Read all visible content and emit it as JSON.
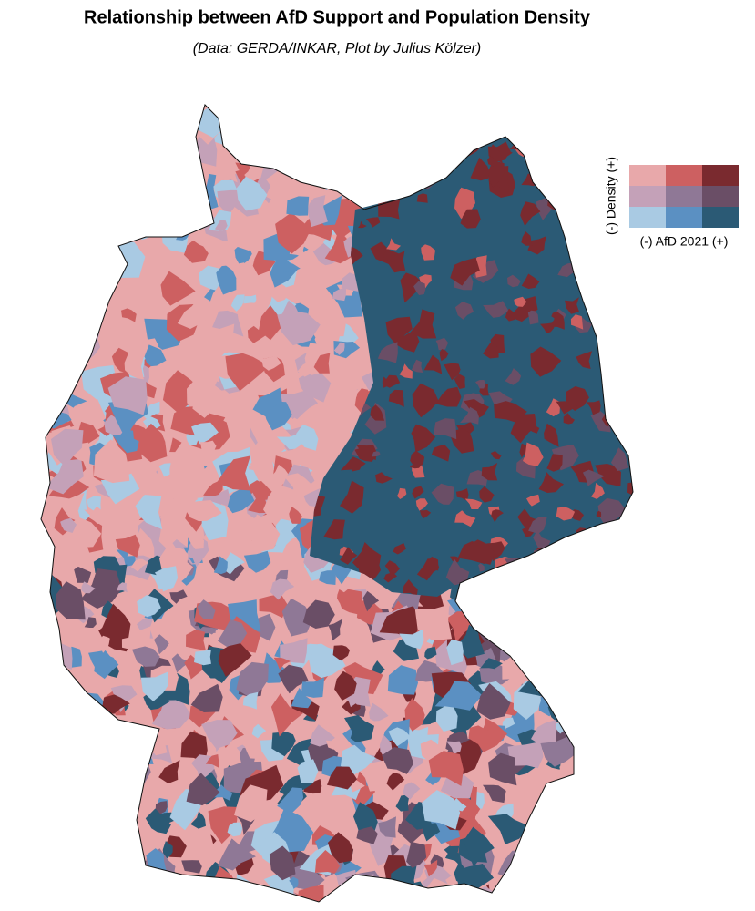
{
  "title": "Relationship between AfD Support and Population Density",
  "subtitle": "(Data: GERDA/INKAR, Plot by Julius Kölzer)",
  "legend": {
    "x_label": "(-) AfD 2021 (+)",
    "y_label": "(-) Density (+)",
    "colors": [
      [
        "#e8a8aa",
        "#cd6061",
        "#7a2a2f"
      ],
      [
        "#c4a1b8",
        "#8f7896",
        "#6a4e66"
      ],
      [
        "#a9cae3",
        "#5b90c2",
        "#2b5a75"
      ]
    ]
  }
}
